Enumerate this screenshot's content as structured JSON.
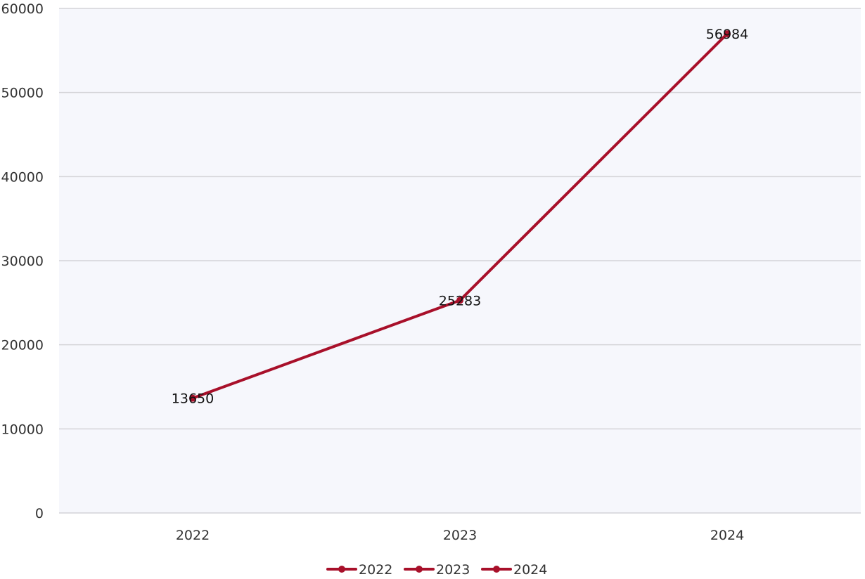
{
  "chart_data": {
    "type": "line",
    "title": "",
    "xlabel": "",
    "ylabel": "",
    "categories": [
      "2022",
      "2023",
      "2024"
    ],
    "series": [
      {
        "values": [
          13650,
          25283,
          56984
        ],
        "color": "#a8102a"
      }
    ],
    "data_labels": [
      "13650",
      "25283",
      "56984"
    ],
    "y_ticks": [
      0,
      10000,
      20000,
      30000,
      40000,
      50000,
      60000
    ],
    "ylim": [
      0,
      60000
    ],
    "grid": true,
    "legend": {
      "placement": "bottom-center",
      "entries": [
        "2022",
        "2023",
        "2024"
      ],
      "color": "#a8102a"
    },
    "colors": {
      "plot_background": "#f6f7fc",
      "gridline": "#d4d4d8"
    }
  }
}
